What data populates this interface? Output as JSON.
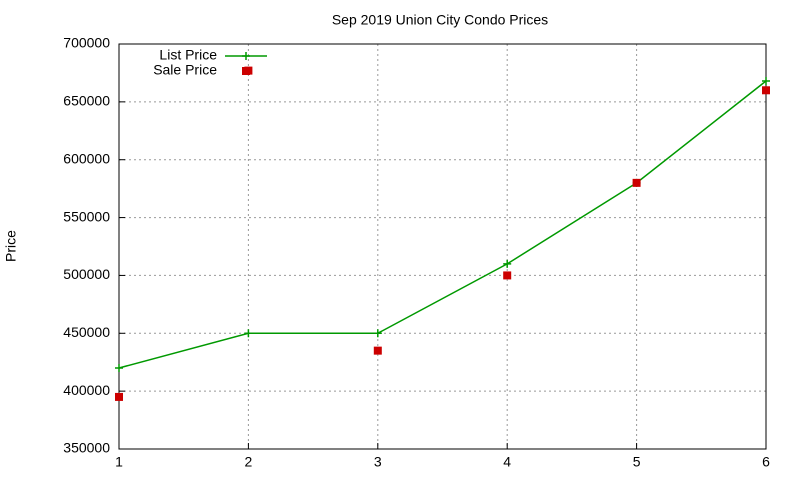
{
  "chart_data": {
    "type": "line",
    "title": "Sep 2019 Union City Condo Prices",
    "y_label": "Price",
    "x": [
      1,
      2,
      3,
      4,
      5,
      6
    ],
    "series": [
      {
        "name": "List Price",
        "color": "#009900",
        "mode": "lines+markers",
        "marker": "plus",
        "values": [
          420000,
          450000,
          450000,
          510000,
          580000,
          668000
        ]
      },
      {
        "name": "Sale Price",
        "color": "#cc0000",
        "mode": "markers",
        "marker": "square",
        "values": [
          395000,
          677000,
          435000,
          500000,
          580000,
          660000
        ]
      }
    ],
    "xlim": [
      1,
      6
    ],
    "xticks": [
      1,
      2,
      3,
      4,
      5,
      6
    ],
    "ylim": [
      350000,
      700000
    ],
    "yticks": [
      350000,
      400000,
      450000,
      500000,
      550000,
      600000,
      650000,
      700000
    ],
    "grid": true,
    "legend": "top-left"
  }
}
